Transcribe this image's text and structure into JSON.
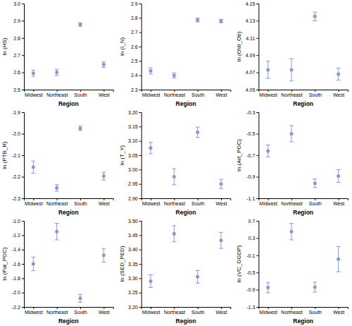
{
  "chart_data": [
    {
      "type": "scatter",
      "ylabel": "ln (HS)",
      "xlabel": "Region",
      "categories": [
        "Midwest",
        "Northeast",
        "South",
        "West"
      ],
      "color": "#8899cc",
      "grid": false,
      "ylim": [
        2.5,
        3.0
      ],
      "yticks": [
        2.5,
        2.6,
        2.7,
        2.8,
        2.9,
        {
          "value": 3.0,
          "label": "3.0"
        }
      ],
      "values": [
        2.595,
        2.6,
        2.878,
        2.645
      ],
      "errors": [
        0.018,
        0.018,
        0.01,
        0.016
      ]
    },
    {
      "type": "scatter",
      "ylabel": "ln (I_N)",
      "xlabel": "Region",
      "categories": [
        "Midwest",
        "Northeast",
        "South",
        "West"
      ],
      "color": "#8899cc",
      "grid": false,
      "ylim": [
        2.3,
        2.9
      ],
      "yticks": [
        2.3,
        2.4,
        2.5,
        2.6,
        2.7,
        2.8,
        2.9
      ],
      "values": [
        2.43,
        2.398,
        2.785,
        2.778
      ],
      "errors": [
        0.022,
        0.018,
        0.013,
        0.012
      ]
    },
    {
      "type": "scatter",
      "ylabel": "ln (OW_Ob)",
      "xlabel": "Region",
      "categories": [
        "Midwest",
        "Northeast",
        "South",
        "West"
      ],
      "color": "#8899cc",
      "grid": false,
      "ylim": [
        4.05,
        4.15
      ],
      "yticks": [
        4.05,
        4.07,
        4.09,
        4.11,
        4.13,
        4.15
      ],
      "values": [
        4.073,
        4.073,
        4.135,
        4.068
      ],
      "errors": [
        0.01,
        0.013,
        0.005,
        0.007
      ]
    },
    {
      "type": "scatter",
      "ylabel": "ln (PTB_R)",
      "xlabel": "Region",
      "categories": [
        "Midwest",
        "Northeast",
        "South",
        "West"
      ],
      "color": "#8899cc",
      "grid": false,
      "ylim": [
        -2.3,
        -1.9
      ],
      "yticks": [
        -2.3,
        -2.2,
        -2.1,
        {
          "value": -2.0,
          "label": "-2.0"
        },
        -1.9
      ],
      "values": [
        -2.155,
        -2.252,
        -1.975,
        -2.197
      ],
      "errors": [
        0.028,
        0.015,
        0.01,
        0.018
      ]
    },
    {
      "type": "scatter",
      "ylabel": "ln (T_Y)",
      "xlabel": "Region",
      "categories": [
        "Midwest",
        "Northeast",
        "South",
        "West"
      ],
      "color": "#8899cc",
      "grid": false,
      "ylim": [
        2.9,
        3.2
      ],
      "yticks": [
        {
          "value": 2.9,
          "label": "2.90"
        },
        2.95,
        {
          "value": 3.0,
          "label": "3.00"
        },
        3.05,
        {
          "value": 3.1,
          "label": "3.10"
        },
        3.15,
        {
          "value": 3.2,
          "label": "3.20"
        }
      ],
      "values": [
        3.075,
        2.975,
        3.13,
        2.95
      ],
      "errors": [
        0.02,
        0.028,
        0.018,
        0.016
      ]
    },
    {
      "type": "scatter",
      "ylabel": "ln (Art_PGC)",
      "xlabel": "Region",
      "categories": [
        "Midwest",
        "Northeast",
        "South",
        "West"
      ],
      "color": "#8899cc",
      "grid": false,
      "ylim": [
        -1.1,
        -0.3
      ],
      "yticks": [
        -1.1,
        -0.9,
        -0.7,
        -0.5,
        -0.3
      ],
      "values": [
        -0.66,
        -0.5,
        -0.96,
        -0.893
      ],
      "errors": [
        0.055,
        0.075,
        0.04,
        0.06
      ]
    },
    {
      "type": "scatter",
      "ylabel": "ln (Pat_PGC)",
      "xlabel": "Region",
      "categories": [
        "Midwest",
        "Northeast",
        "South",
        "West"
      ],
      "color": "#8899cc",
      "grid": false,
      "ylim": [
        -2.2,
        -1.0
      ],
      "yticks": [
        -2.2,
        {
          "value": -2.0,
          "label": "-2.0"
        },
        -1.8,
        -1.6,
        -1.4,
        -1.2,
        {
          "value": -1.0,
          "label": "-1.0"
        }
      ],
      "values": [
        -1.6,
        -1.15,
        -2.08,
        -1.48
      ],
      "errors": [
        0.095,
        0.115,
        0.055,
        0.095
      ]
    },
    {
      "type": "scatter",
      "ylabel": "ln (SED_PED)",
      "xlabel": "Region",
      "categories": [
        "Midwest",
        "Northeast",
        "South",
        "West"
      ],
      "color": "#8899cc",
      "grid": false,
      "ylim": [
        3.2,
        3.5
      ],
      "yticks": [
        {
          "value": 3.2,
          "label": "3.20"
        },
        3.25,
        {
          "value": 3.3,
          "label": "3.30"
        },
        3.35,
        {
          "value": 3.4,
          "label": "3.40"
        },
        3.45,
        {
          "value": 3.5,
          "label": "3.50"
        }
      ],
      "values": [
        3.29,
        3.455,
        3.305,
        3.432
      ],
      "errors": [
        0.022,
        0.028,
        0.022,
        0.028
      ]
    },
    {
      "type": "scatter",
      "ylabel": "ln (VC_GGDP)",
      "xlabel": "Region",
      "categories": [
        "Midwest",
        "Northeast",
        "South",
        "West"
      ],
      "color": "#8899cc",
      "grid": false,
      "ylim": [
        -1.3,
        0.7
      ],
      "yticks": [
        -1.3,
        -0.9,
        -0.5,
        -0.1,
        0.3,
        0.7
      ],
      "values": [
        -0.85,
        0.45,
        -0.84,
        -0.19
      ],
      "errors": [
        0.12,
        0.19,
        0.115,
        0.29
      ]
    }
  ]
}
